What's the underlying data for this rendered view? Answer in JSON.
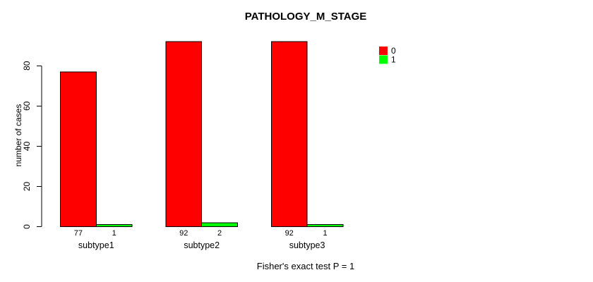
{
  "title": "PATHOLOGY_M_STAGE",
  "ylabel": "number of cases",
  "footer": "Fisher's exact test P = 1",
  "legend": {
    "items": [
      {
        "label": "0",
        "color": "#FF0000"
      },
      {
        "label": "1",
        "color": "#00FF00"
      }
    ]
  },
  "chart_data": {
    "type": "bar",
    "title": "PATHOLOGY_M_STAGE",
    "xlabel": "",
    "ylabel": "number of cases",
    "categories": [
      "subtype1",
      "subtype2",
      "subtype3"
    ],
    "series": [
      {
        "name": "0",
        "color": "#FF0000",
        "values": [
          77,
          92,
          92
        ]
      },
      {
        "name": "1",
        "color": "#00FF00",
        "values": [
          1,
          2,
          1
        ]
      }
    ],
    "value_labels": [
      [
        "77",
        "92",
        "92"
      ],
      [
        "1",
        "2",
        "1"
      ]
    ],
    "yticks": [
      0,
      20,
      40,
      60,
      80
    ],
    "ylim": [
      0,
      80
    ],
    "grid": false,
    "legend_position": "topright",
    "bar_orientation": "vertical",
    "annotation": "Fisher's exact test P = 1"
  }
}
